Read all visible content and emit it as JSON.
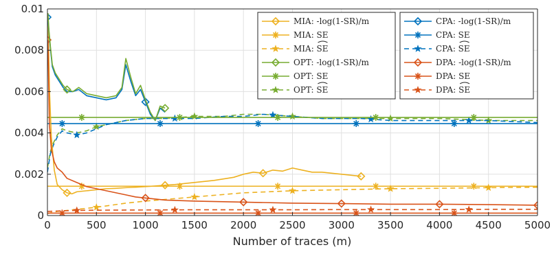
{
  "chart_data": {
    "type": "line",
    "title": "",
    "xlabel": "Number of traces (m)",
    "ylabel": "",
    "xlim": [
      0,
      5000
    ],
    "ylim": [
      0,
      0.01
    ],
    "xticks": [
      0,
      500,
      1000,
      1500,
      2000,
      2500,
      3000,
      3500,
      4000,
      4500,
      5000
    ],
    "xtick_labels": [
      "0",
      "500",
      "1000",
      "1500",
      "2000",
      "2500",
      "3000",
      "3500",
      "4000",
      "4500",
      "5000"
    ],
    "yticks": [
      0,
      0.002,
      0.004,
      0.006,
      0.008,
      0.01
    ],
    "ytick_labels": [
      "0",
      "0.002",
      "0.004",
      "0.006",
      "0.008",
      "0.01"
    ],
    "grid": true,
    "legend_position": "top-right",
    "colors": {
      "MIA": "#EDB120",
      "OPT": "#77AC30",
      "CPA": "#0072BD",
      "DPA": "#D95319"
    },
    "series": [
      {
        "name": "MIA: -log(1-SR)/m",
        "group": "MIA",
        "style": "solid",
        "marker": "diamond",
        "x": [
          5,
          20,
          40,
          70,
          100,
          150,
          200,
          250,
          300,
          400,
          500,
          600,
          700,
          800,
          900,
          1000,
          1100,
          1200,
          1300,
          1500,
          1700,
          1900,
          2000,
          2100,
          2200,
          2300,
          2400,
          2500,
          2600,
          2700,
          2800,
          2900,
          3000,
          3100,
          3200
        ],
        "y": [
          0.0098,
          0.0062,
          0.0038,
          0.0022,
          0.0015,
          0.00125,
          0.0011,
          0.00105,
          0.00115,
          0.0012,
          0.00125,
          0.0013,
          0.00132,
          0.00135,
          0.00137,
          0.0014,
          0.00143,
          0.00147,
          0.0015,
          0.0016,
          0.0017,
          0.00185,
          0.002,
          0.0021,
          0.00205,
          0.0022,
          0.00215,
          0.0023,
          0.0022,
          0.0021,
          0.0021,
          0.00205,
          0.002,
          0.00195,
          0.0019
        ]
      },
      {
        "name": "MIA: SE",
        "group": "MIA",
        "style": "solid",
        "marker": "asterisk",
        "x": [
          0,
          5000
        ],
        "y": [
          0.00142,
          0.00142
        ]
      },
      {
        "name": "MIA: SE-hat",
        "group": "MIA",
        "style": "dashed",
        "marker": "star",
        "x": [
          0,
          100,
          300,
          500,
          800,
          1000,
          1500,
          2000,
          2500,
          3000,
          3500,
          4000,
          4500,
          5000
        ],
        "y": [
          0.0001,
          0.0002,
          0.0003,
          0.0004,
          0.0006,
          0.0007,
          0.0009,
          0.0011,
          0.0012,
          0.00125,
          0.0013,
          0.00132,
          0.00135,
          0.00137
        ]
      },
      {
        "name": "OPT: -log(1-SR)/m",
        "group": "OPT",
        "style": "solid",
        "marker": "diamond",
        "x": [
          5,
          15,
          30,
          50,
          80,
          120,
          160,
          200,
          260,
          320,
          400,
          500,
          600,
          700,
          760,
          800,
          850,
          900,
          950,
          1000,
          1050,
          1100,
          1150,
          1200
        ],
        "y": [
          0.0098,
          0.009,
          0.0082,
          0.0073,
          0.0069,
          0.0066,
          0.0063,
          0.0061,
          0.006,
          0.0062,
          0.0059,
          0.0058,
          0.0057,
          0.0058,
          0.0062,
          0.0076,
          0.0067,
          0.0059,
          0.0063,
          0.0056,
          0.005,
          0.0046,
          0.0053,
          0.0052
        ]
      },
      {
        "name": "OPT: SE",
        "group": "OPT",
        "style": "solid",
        "marker": "asterisk",
        "x": [
          0,
          5000
        ],
        "y": [
          0.00475,
          0.00475
        ]
      },
      {
        "name": "OPT: SE-hat",
        "group": "OPT",
        "style": "dashed",
        "marker": "star",
        "x": [
          0,
          30,
          60,
          100,
          150,
          200,
          300,
          400,
          500,
          600,
          800,
          1000,
          1200,
          1500,
          1800,
          2000,
          2200,
          2500,
          2800,
          3000,
          3200,
          3500,
          4000,
          4500,
          5000
        ],
        "y": [
          0.0023,
          0.0031,
          0.0035,
          0.0039,
          0.0042,
          0.0041,
          0.004,
          0.0041,
          0.0043,
          0.0044,
          0.0046,
          0.0047,
          0.0047,
          0.0048,
          0.0048,
          0.0049,
          0.0049,
          0.0048,
          0.0047,
          0.0047,
          0.0047,
          0.0047,
          0.0047,
          0.0046,
          0.0046
        ]
      },
      {
        "name": "CPA: -log(1-SR)/m",
        "group": "CPA",
        "style": "solid",
        "marker": "diamond",
        "x": [
          5,
          15,
          30,
          50,
          80,
          120,
          160,
          200,
          260,
          320,
          400,
          500,
          600,
          700,
          760,
          800,
          850,
          900,
          950,
          1000,
          1050,
          1100,
          1150,
          1200
        ],
        "y": [
          0.0096,
          0.0089,
          0.0081,
          0.0072,
          0.0068,
          0.0065,
          0.0062,
          0.006,
          0.006,
          0.0061,
          0.0058,
          0.0057,
          0.0056,
          0.0057,
          0.0061,
          0.0073,
          0.0065,
          0.0058,
          0.0061,
          0.0055,
          0.0049,
          0.0046,
          0.0052,
          0.005
        ]
      },
      {
        "name": "CPA: SE",
        "group": "CPA",
        "style": "solid",
        "marker": "asterisk",
        "x": [
          0,
          5000
        ],
        "y": [
          0.00445,
          0.00445
        ]
      },
      {
        "name": "CPA: SE-hat",
        "group": "CPA",
        "style": "dashed",
        "marker": "star",
        "x": [
          0,
          30,
          60,
          100,
          150,
          200,
          300,
          400,
          500,
          600,
          800,
          1000,
          1200,
          1500,
          1800,
          2000,
          2200,
          2500,
          2800,
          3000,
          3200,
          3500,
          4000,
          4500,
          5000
        ],
        "y": [
          0.0021,
          0.003,
          0.0034,
          0.0038,
          0.0041,
          0.004,
          0.0039,
          0.004,
          0.0042,
          0.0044,
          0.0046,
          0.0047,
          0.0047,
          0.0047,
          0.0048,
          0.0048,
          0.0049,
          0.0048,
          0.0047,
          0.0047,
          0.0047,
          0.0046,
          0.0046,
          0.0046,
          0.0045
        ]
      },
      {
        "name": "DPA: -log(1-SR)/m",
        "group": "DPA",
        "style": "solid",
        "marker": "diamond",
        "x": [
          5,
          20,
          40,
          70,
          100,
          150,
          200,
          300,
          400,
          500,
          600,
          700,
          800,
          900,
          1000,
          1200,
          1500,
          2000,
          2500,
          3000,
          3500,
          4000,
          4500,
          5000
        ],
        "y": [
          0.0085,
          0.0044,
          0.0032,
          0.0026,
          0.0023,
          0.0021,
          0.0018,
          0.0016,
          0.0014,
          0.0013,
          0.0012,
          0.0011,
          0.001,
          0.0009,
          0.00085,
          0.00075,
          0.0007,
          0.00065,
          0.0006,
          0.00058,
          0.00055,
          0.00055,
          0.00053,
          0.0005
        ]
      },
      {
        "name": "DPA: SE",
        "group": "DPA",
        "style": "solid",
        "marker": "asterisk",
        "x": [
          0,
          5000
        ],
        "y": [
          0.00012,
          0.00012
        ]
      },
      {
        "name": "DPA: SE-hat",
        "group": "DPA",
        "style": "dashed",
        "marker": "star",
        "x": [
          0,
          100,
          300,
          500,
          1000,
          1500,
          2000,
          2500,
          3000,
          3500,
          4000,
          4500,
          5000
        ],
        "y": [
          0.0002,
          0.00022,
          0.00025,
          0.00026,
          0.00027,
          0.00028,
          0.00028,
          0.00028,
          0.00029,
          0.00029,
          0.00029,
          0.0003,
          0.0003
        ]
      }
    ],
    "legend": {
      "columns": [
        [
          {
            "series": 0,
            "label": "MIA: -log(1-SR)/m"
          },
          {
            "series": 1,
            "label": "MIA: SE"
          },
          {
            "series": 2,
            "label": "MIA: SE",
            "hat": true
          },
          {
            "series": 3,
            "label": "OPT: -log(1-SR)/m"
          },
          {
            "series": 4,
            "label": "OPT: SE"
          },
          {
            "series": 5,
            "label": "OPT: SE",
            "hat": true
          }
        ],
        [
          {
            "series": 6,
            "label": "CPA: -log(1-SR)/m"
          },
          {
            "series": 7,
            "label": "CPA: SE"
          },
          {
            "series": 8,
            "label": "CPA: SE",
            "hat": true
          },
          {
            "series": 9,
            "label": "DPA: -log(1-SR)/m"
          },
          {
            "series": 10,
            "label": "DPA: SE"
          },
          {
            "series": 11,
            "label": "DPA: SE",
            "hat": true
          }
        ]
      ]
    }
  }
}
